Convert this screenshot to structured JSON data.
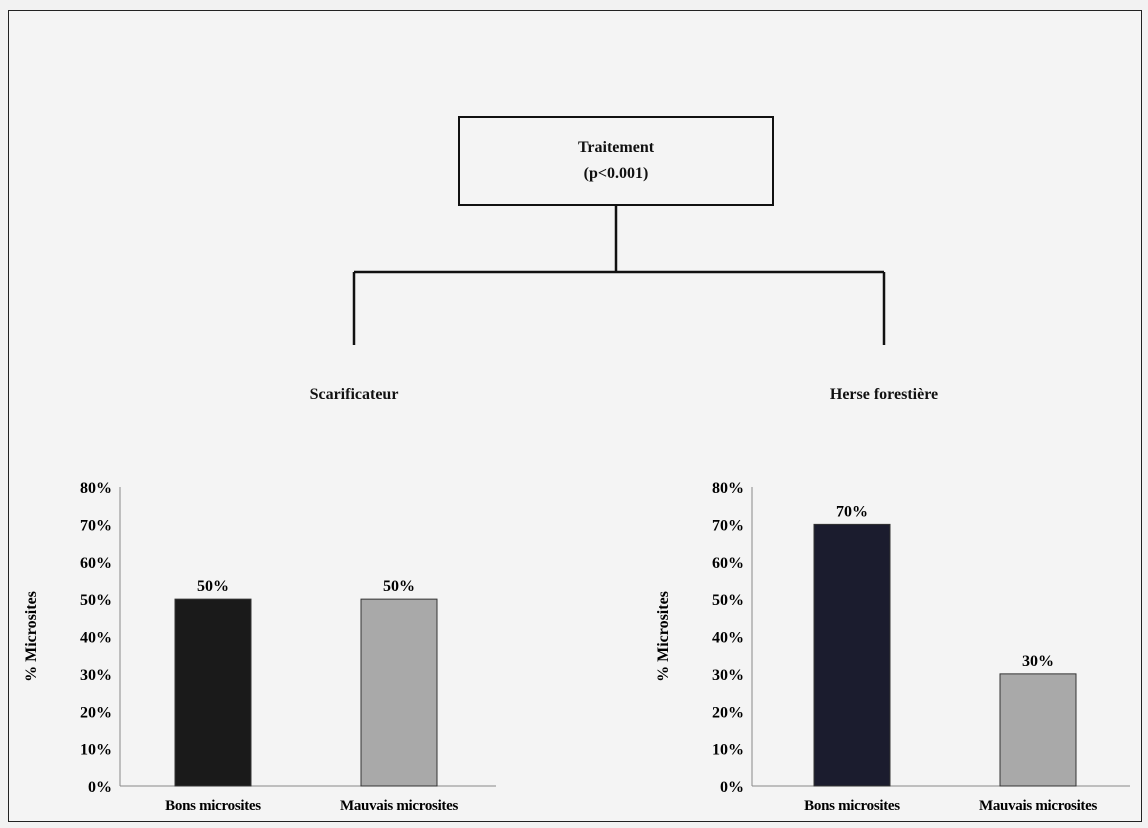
{
  "tree": {
    "root_title": "Traitement",
    "root_pvalue": "(p<0.001)",
    "branches": [
      "Scarificateur",
      "Herse forestière"
    ]
  },
  "colors": {
    "dark_bar": "#1a1a1a",
    "dark_bar_right": "#1b1c2e",
    "light_bar": "#a9a9a9"
  },
  "chart_data": [
    {
      "type": "bar",
      "title": "Scarificateur",
      "categories": [
        "Bons microsites",
        "Mauvais microsites"
      ],
      "values": [
        50,
        50
      ],
      "data_labels": [
        "50%",
        "50%"
      ],
      "ylabel": "% Microsites",
      "ylim": [
        0,
        80
      ],
      "yticks": [
        "0%",
        "10%",
        "20%",
        "30%",
        "40%",
        "50%",
        "60%",
        "70%",
        "80%"
      ],
      "grid": false,
      "legend": "none"
    },
    {
      "type": "bar",
      "title": "Herse forestière",
      "categories": [
        "Bons microsites",
        "Mauvais microsites"
      ],
      "values": [
        70,
        30
      ],
      "data_labels": [
        "70%",
        "30%"
      ],
      "ylabel": "% Microsites",
      "ylim": [
        0,
        80
      ],
      "yticks": [
        "0%",
        "10%",
        "20%",
        "30%",
        "40%",
        "50%",
        "60%",
        "70%",
        "80%"
      ],
      "grid": false,
      "legend": "none"
    }
  ]
}
